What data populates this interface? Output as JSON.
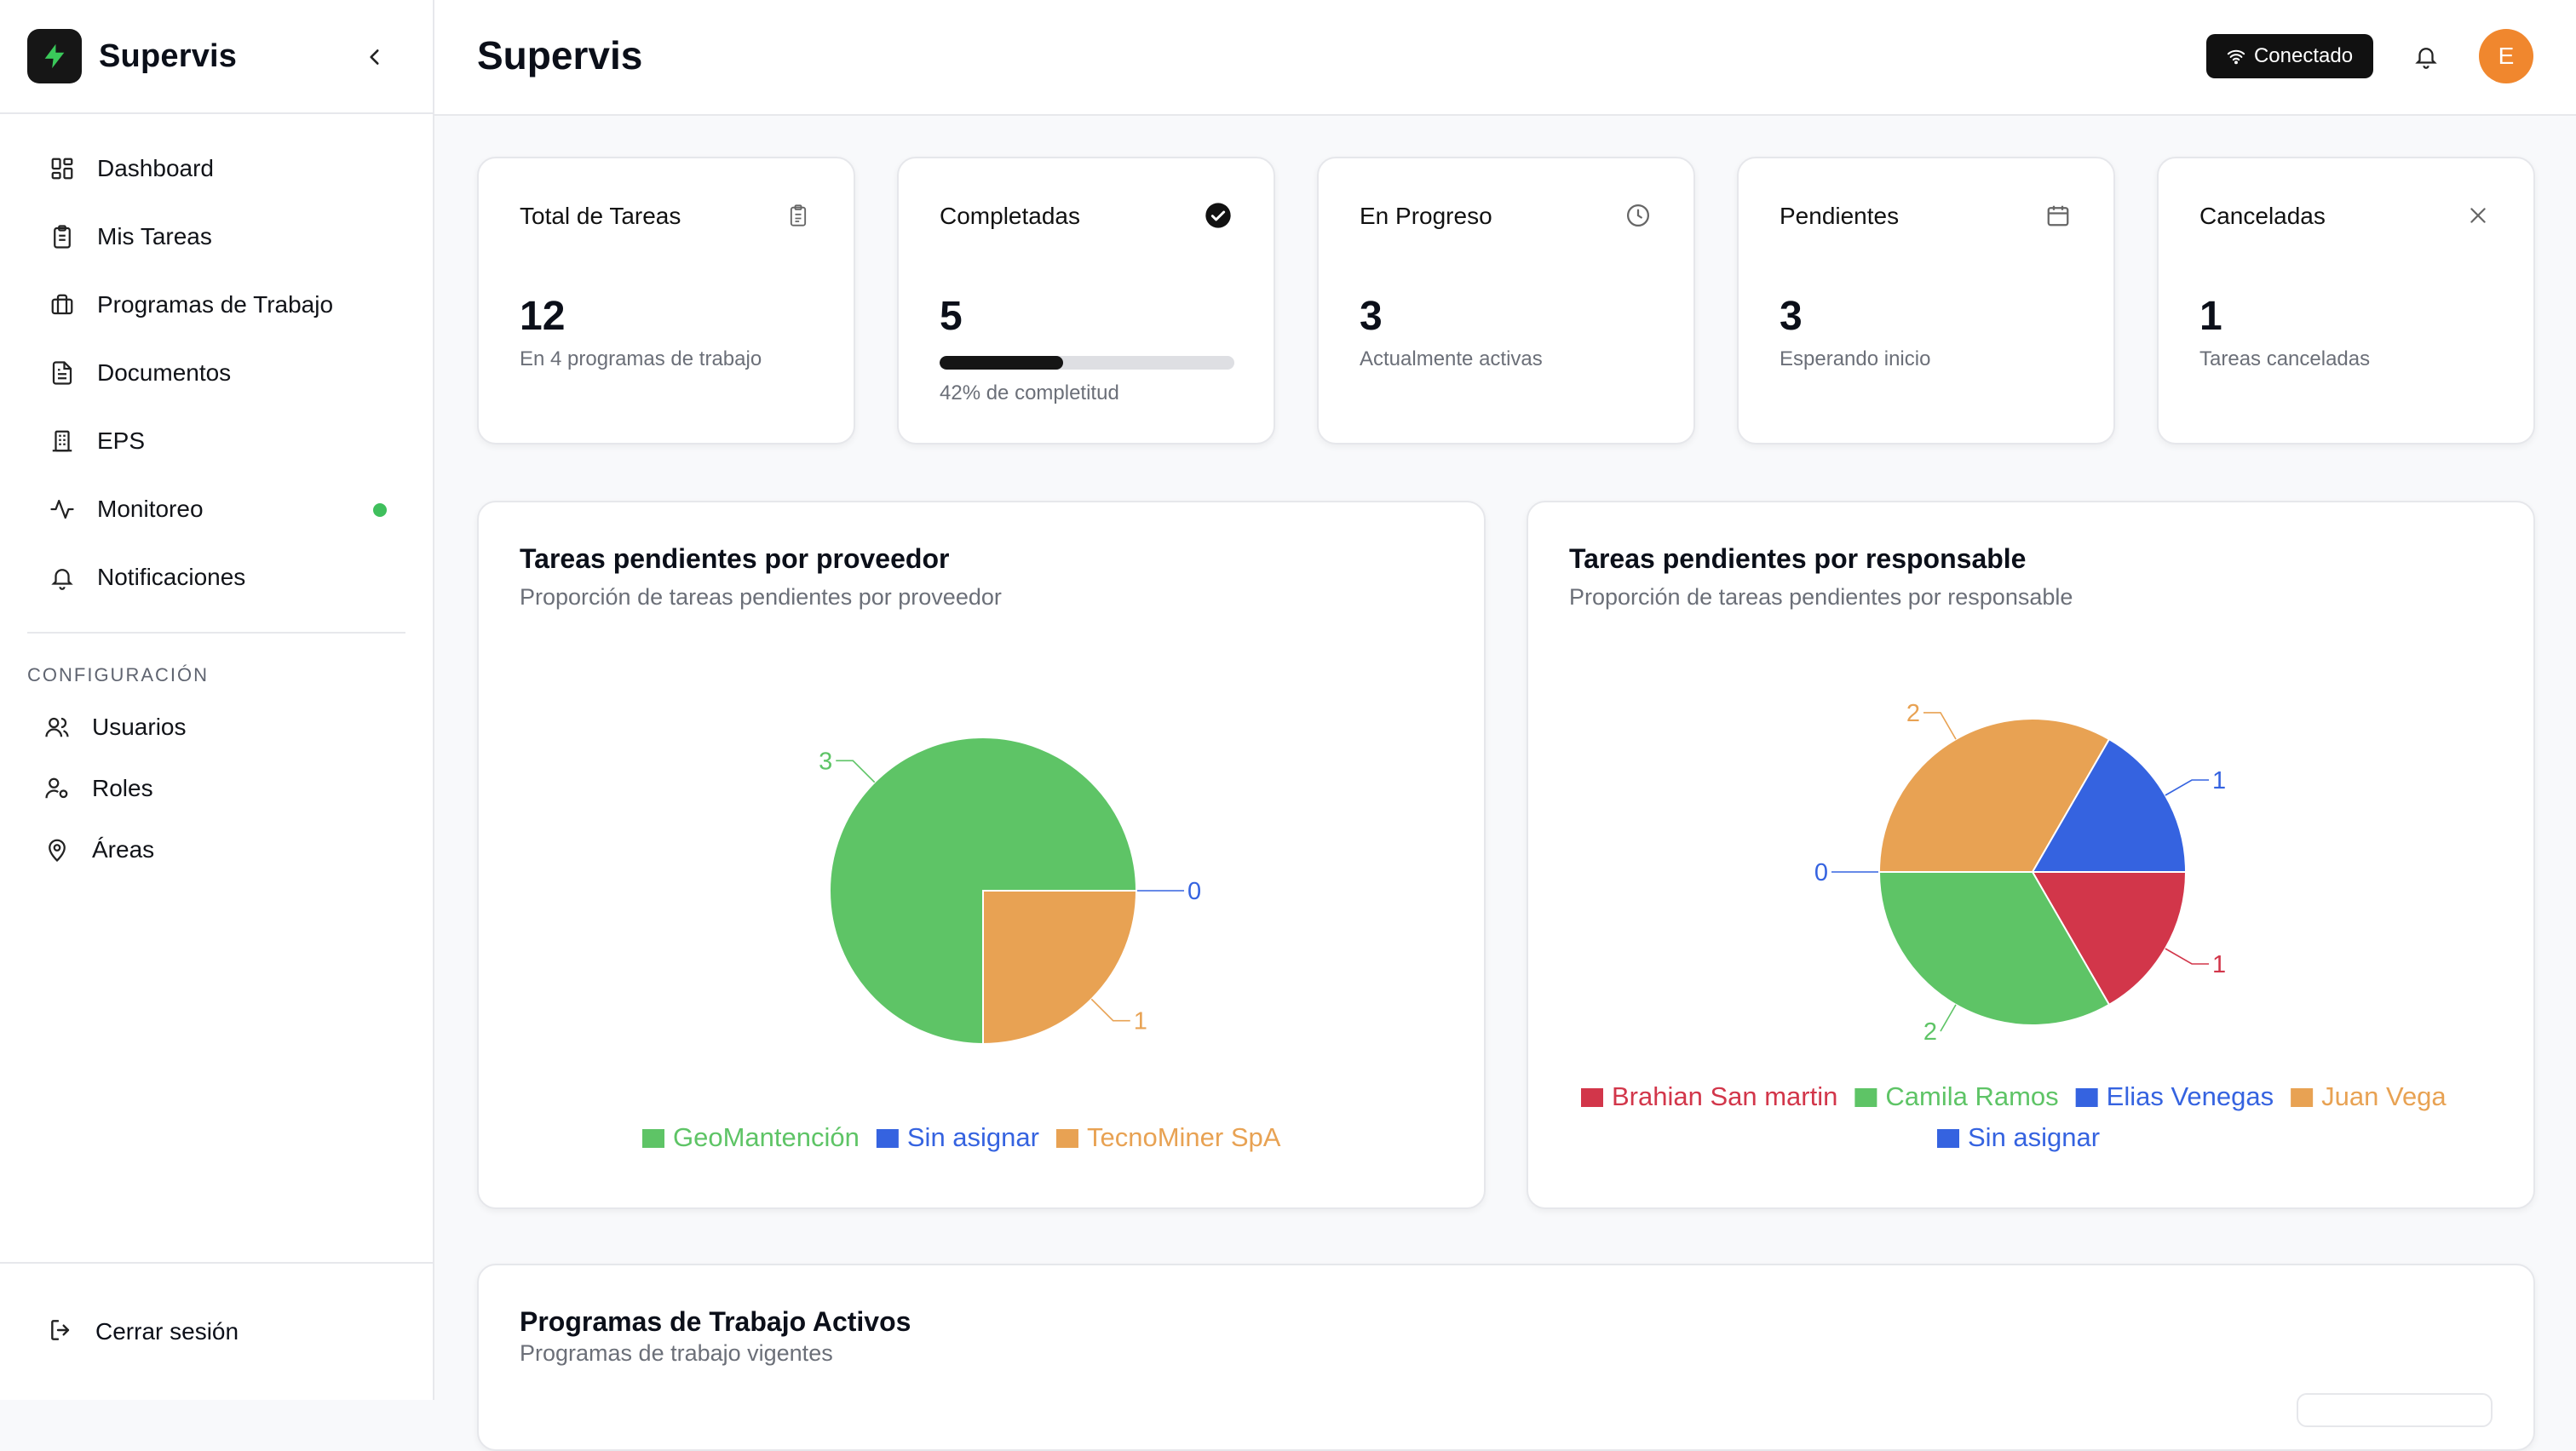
{
  "brand": {
    "name": "Supervis"
  },
  "sidebar": {
    "items": [
      {
        "label": "Dashboard",
        "icon": "dashboard-icon"
      },
      {
        "label": "Mis Tareas",
        "icon": "clipboard-icon"
      },
      {
        "label": "Programas de Trabajo",
        "icon": "briefcase-icon"
      },
      {
        "label": "Documentos",
        "icon": "document-icon"
      },
      {
        "label": "EPS",
        "icon": "building-icon"
      },
      {
        "label": "Monitoreo",
        "icon": "activity-icon"
      },
      {
        "label": "Notificaciones",
        "icon": "bell-icon"
      }
    ],
    "section_title": "CONFIGURACIÓN",
    "config_items": [
      {
        "label": "Usuarios",
        "icon": "users-icon"
      },
      {
        "label": "Roles",
        "icon": "user-cog-icon"
      },
      {
        "label": "Áreas",
        "icon": "map-pin-icon"
      }
    ],
    "logout_label": "Cerrar sesión"
  },
  "header": {
    "title": "Supervis",
    "connection_status": "Conectado",
    "avatar_initial": "E"
  },
  "stats": [
    {
      "title": "Total de Tareas",
      "value": "12",
      "sub": "En 4 programas de trabajo",
      "icon": "clipboard-icon"
    },
    {
      "title": "Completadas",
      "value": "5",
      "sub": "42% de completitud",
      "progress": 0.42,
      "icon": "check-circle-icon"
    },
    {
      "title": "En Progreso",
      "value": "3",
      "sub": "Actualmente activas",
      "icon": "clock-icon"
    },
    {
      "title": "Pendientes",
      "value": "3",
      "sub": "Esperando inicio",
      "icon": "calendar-icon"
    },
    {
      "title": "Canceladas",
      "value": "1",
      "sub": "Tareas canceladas",
      "icon": "close-icon"
    }
  ],
  "charts": {
    "provider": {
      "title": "Tareas pendientes por proveedor",
      "subtitle": "Proporción de tareas pendientes por proveedor"
    },
    "responsible": {
      "title": "Tareas pendientes por responsable",
      "subtitle": "Proporción de tareas pendientes por responsable"
    }
  },
  "chart_data": [
    {
      "type": "pie",
      "title": "Tareas pendientes por proveedor",
      "categories": [
        "GeoMantención",
        "Sin asignar",
        "TecnoMiner SpA"
      ],
      "values": [
        3,
        0,
        1
      ],
      "colors": [
        "#5ec466",
        "#3563e0",
        "#e8a253"
      ],
      "legend": "bottom"
    },
    {
      "type": "pie",
      "title": "Tareas pendientes por responsable",
      "categories": [
        "Brahian San martin",
        "Camila Ramos",
        "Elias Venegas",
        "Juan Vega",
        "Sin asignar"
      ],
      "values": [
        1,
        2,
        0,
        2,
        1
      ],
      "colors": [
        "#d2364a",
        "#5ec466",
        "#3563e0",
        "#e8a253",
        "#3563e0"
      ],
      "legend": "bottom"
    }
  ],
  "programs": {
    "title": "Programas de Trabajo Activos",
    "subtitle": "Programas de trabajo vigentes"
  }
}
